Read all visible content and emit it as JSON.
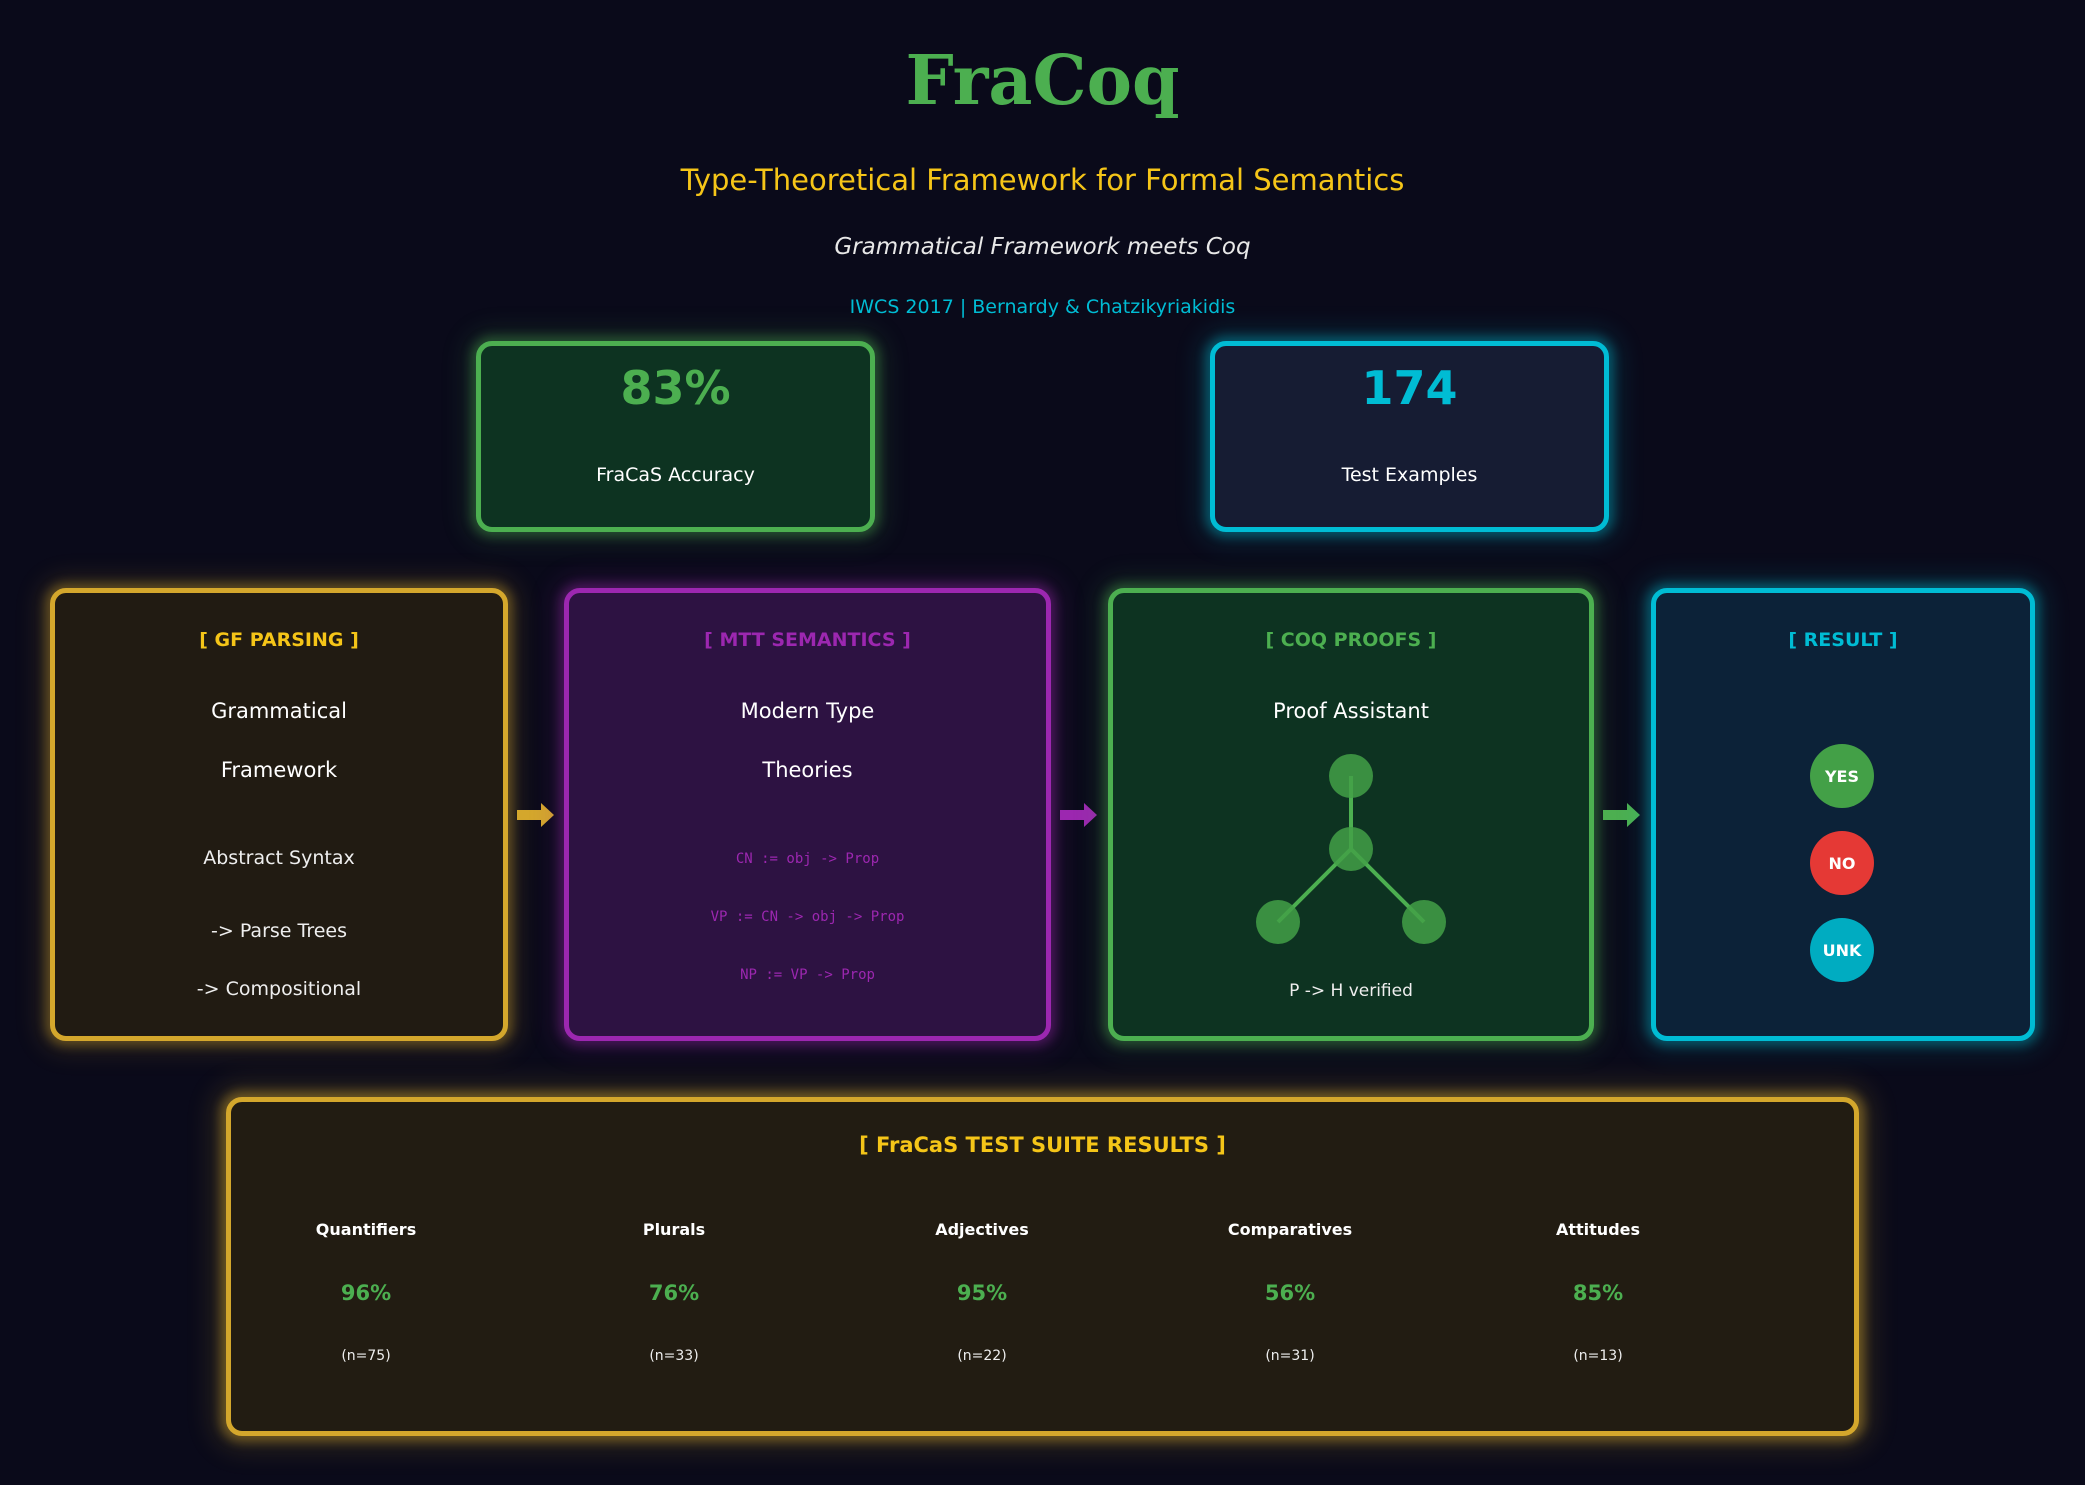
{
  "header": {
    "title": "FraCoq",
    "subtitle": "Type-Theoretical Framework for Formal Semantics",
    "tagline": "Grammatical Framework meets Coq",
    "venue": "IWCS 2017 | Bernardy & Chatzikyriakidis"
  },
  "stats": [
    {
      "value": "83%",
      "label": "FraCaS Accuracy",
      "color": "#4caf50"
    },
    {
      "value": "174",
      "label": "Test Examples",
      "color": "#00bcd4"
    }
  ],
  "pipeline": {
    "gf": {
      "header": "[ GF PARSING ]",
      "line1": "Grammatical",
      "line2": "Framework",
      "detail1": "Abstract Syntax",
      "detail2": "-> Parse Trees",
      "detail3": "-> Compositional",
      "color": "#f5c518"
    },
    "mtt": {
      "header": "[ MTT SEMANTICS ]",
      "line1": "Modern Type",
      "line2": "Theories",
      "code1": "CN := obj -> Prop",
      "code2": "VP := CN -> obj -> Prop",
      "code3": "NP := VP -> Prop",
      "color": "#9c27b0"
    },
    "coq": {
      "header": "[ COQ PROOFS ]",
      "line1": "Proof Assistant",
      "footer": "P -> H verified",
      "color": "#4caf50"
    },
    "result": {
      "header": "[ RESULT ]",
      "answers": [
        {
          "label": "YES",
          "color": "#43a047"
        },
        {
          "label": "NO",
          "color": "#e53935"
        },
        {
          "label": "UNK",
          "color": "#00acc1"
        }
      ],
      "color": "#00bcd4"
    }
  },
  "suite": {
    "header": "[ FraCaS TEST SUITE RESULTS ]",
    "columns": [
      {
        "name": "Quantifiers",
        "pct": "96%",
        "n": "(n=75)"
      },
      {
        "name": "Plurals",
        "pct": "76%",
        "n": "(n=33)"
      },
      {
        "name": "Adjectives",
        "pct": "95%",
        "n": "(n=22)"
      },
      {
        "name": "Comparatives",
        "pct": "56%",
        "n": "(n=31)"
      },
      {
        "name": "Attitudes",
        "pct": "85%",
        "n": "(n=13)"
      }
    ]
  },
  "colors": {
    "background": "#0a0a1a",
    "green": "#4caf50",
    "cyan": "#00bcd4",
    "gold": "#f5c518",
    "purple": "#9c27b0"
  }
}
